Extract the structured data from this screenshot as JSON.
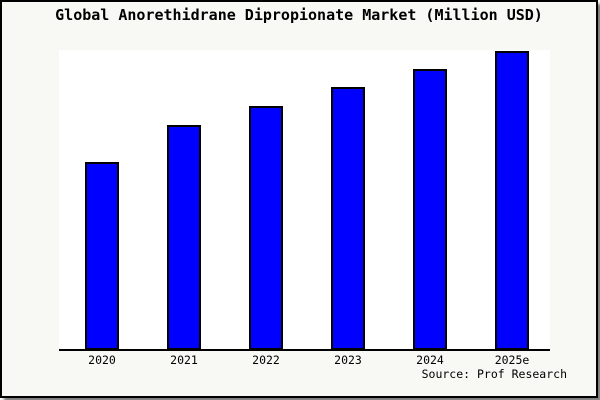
{
  "window": {
    "background_color": "#f8f8f4",
    "frame_border_color": "#000000"
  },
  "chart": {
    "source_note": "Source: Prof Research",
    "colors": {
      "bar_fill": "#0000ff",
      "bar_border": "#000000",
      "plot_background": "#ffffff",
      "axis": "#000000",
      "text": "#000000"
    }
  },
  "chart_data": {
    "type": "bar",
    "title": "Global Anorethidrane Dipropionate Market (Million USD)",
    "categories": [
      "2020",
      "2021",
      "2022",
      "2023",
      "2024",
      "2025e"
    ],
    "values": [
      62.9,
      75.4,
      81.6,
      88.0,
      94.0,
      100.0
    ],
    "value_note": "relative scale estimated from bar heights; no y-axis ticks or value labels are shown in the chart",
    "xlabel": "",
    "ylabel": "",
    "ylim": [
      0,
      100
    ],
    "grid": false,
    "legend": false,
    "y_axis_visible": false,
    "annotations": [
      "Source: Prof Research"
    ]
  }
}
